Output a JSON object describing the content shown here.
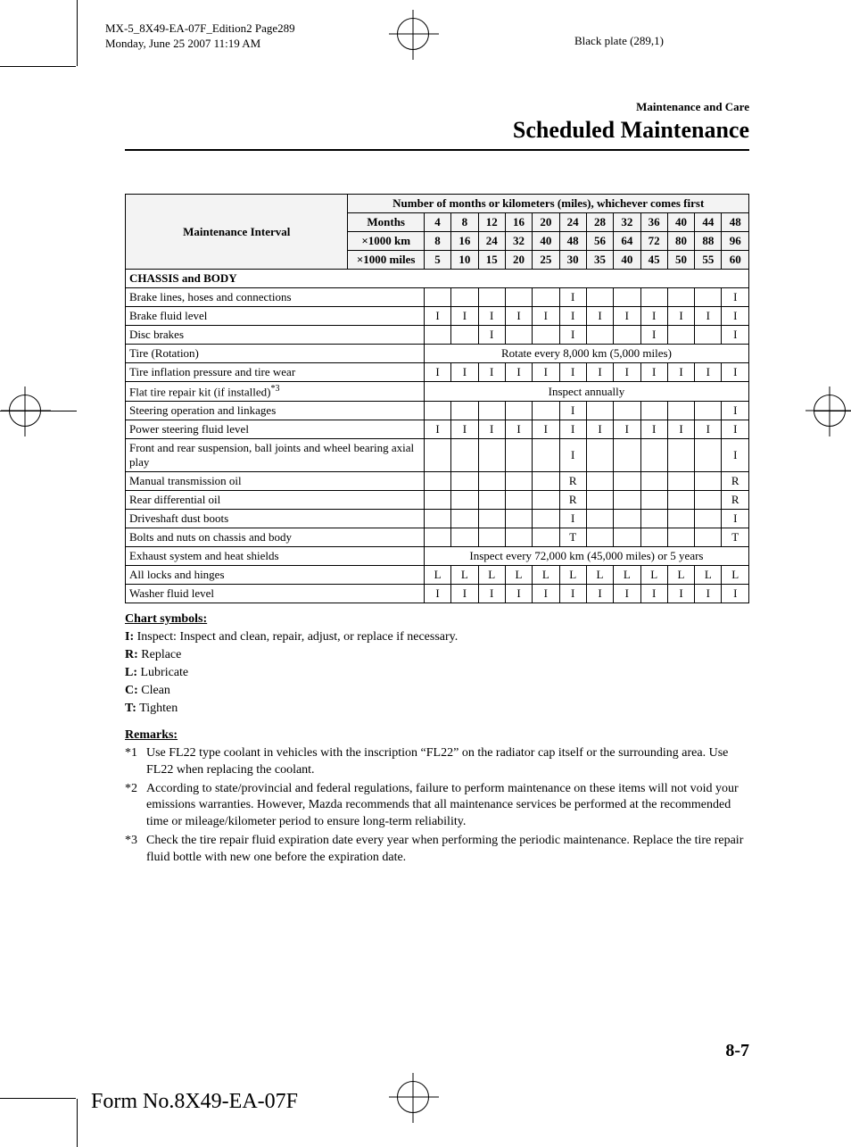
{
  "header": {
    "doc_id": "MX-5_8X49-EA-07F_Edition2 Page289",
    "timestamp": "Monday, June 25 2007 11:19 AM",
    "plate": "Black plate (289,1)"
  },
  "section": {
    "small": "Maintenance and Care",
    "big": "Scheduled Maintenance"
  },
  "table": {
    "header_span": "Number of months or kilometers (miles), whichever comes first",
    "interval_label": "Maintenance Interval",
    "unit_rows": [
      {
        "label": "Months",
        "vals": [
          "4",
          "8",
          "12",
          "16",
          "20",
          "24",
          "28",
          "32",
          "36",
          "40",
          "44",
          "48"
        ]
      },
      {
        "label": "×1000 km",
        "vals": [
          "8",
          "16",
          "24",
          "32",
          "40",
          "48",
          "56",
          "64",
          "72",
          "80",
          "88",
          "96"
        ]
      },
      {
        "label": "×1000 miles",
        "vals": [
          "5",
          "10",
          "15",
          "20",
          "25",
          "30",
          "35",
          "40",
          "45",
          "50",
          "55",
          "60"
        ]
      }
    ],
    "section_title": "CHASSIS and BODY",
    "rows": [
      {
        "label": "Brake lines, hoses and connections",
        "vals": [
          "",
          "",
          "",
          "",
          "",
          "I",
          "",
          "",
          "",
          "",
          "",
          "I"
        ]
      },
      {
        "label": "Brake fluid level",
        "vals": [
          "I",
          "I",
          "I",
          "I",
          "I",
          "I",
          "I",
          "I",
          "I",
          "I",
          "I",
          "I"
        ]
      },
      {
        "label": "Disc brakes",
        "vals": [
          "",
          "",
          "I",
          "",
          "",
          "I",
          "",
          "",
          "I",
          "",
          "",
          "I"
        ]
      },
      {
        "label": "Tire (Rotation)",
        "span": "Rotate every 8,000 km (5,000 miles)"
      },
      {
        "label": "Tire inflation pressure and tire wear",
        "vals": [
          "I",
          "I",
          "I",
          "I",
          "I",
          "I",
          "I",
          "I",
          "I",
          "I",
          "I",
          "I"
        ]
      },
      {
        "label": "Flat tire repair kit (if installed)",
        "sup": "*3",
        "span": "Inspect annually"
      },
      {
        "label": "Steering operation and linkages",
        "vals": [
          "",
          "",
          "",
          "",
          "",
          "I",
          "",
          "",
          "",
          "",
          "",
          "I"
        ]
      },
      {
        "label": "Power steering fluid level",
        "vals": [
          "I",
          "I",
          "I",
          "I",
          "I",
          "I",
          "I",
          "I",
          "I",
          "I",
          "I",
          "I"
        ]
      },
      {
        "label": "Front and rear suspension, ball joints and wheel bearing axial play",
        "tall": true,
        "vals": [
          "",
          "",
          "",
          "",
          "",
          "I",
          "",
          "",
          "",
          "",
          "",
          "I"
        ]
      },
      {
        "label": "Manual transmission oil",
        "vals": [
          "",
          "",
          "",
          "",
          "",
          "R",
          "",
          "",
          "",
          "",
          "",
          "R"
        ]
      },
      {
        "label": "Rear differential oil",
        "vals": [
          "",
          "",
          "",
          "",
          "",
          "R",
          "",
          "",
          "",
          "",
          "",
          "R"
        ]
      },
      {
        "label": "Driveshaft dust boots",
        "vals": [
          "",
          "",
          "",
          "",
          "",
          "I",
          "",
          "",
          "",
          "",
          "",
          "I"
        ]
      },
      {
        "label": "Bolts and nuts on chassis and body",
        "vals": [
          "",
          "",
          "",
          "",
          "",
          "T",
          "",
          "",
          "",
          "",
          "",
          "T"
        ]
      },
      {
        "label": "Exhaust system and heat shields",
        "span": "Inspect every 72,000 km (45,000 miles) or 5 years"
      },
      {
        "label": "All locks and hinges",
        "vals": [
          "L",
          "L",
          "L",
          "L",
          "L",
          "L",
          "L",
          "L",
          "L",
          "L",
          "L",
          "L"
        ]
      },
      {
        "label": "Washer fluid level",
        "vals": [
          "I",
          "I",
          "I",
          "I",
          "I",
          "I",
          "I",
          "I",
          "I",
          "I",
          "I",
          "I"
        ]
      }
    ]
  },
  "symbols": {
    "title": "Chart symbols:",
    "items": [
      {
        "k": "I:",
        "v": " Inspect: Inspect and clean, repair, adjust, or replace if necessary."
      },
      {
        "k": "R:",
        "v": " Replace"
      },
      {
        "k": "L:",
        "v": " Lubricate"
      },
      {
        "k": "C:",
        "v": " Clean"
      },
      {
        "k": "T:",
        "v": " Tighten"
      }
    ]
  },
  "remarks": {
    "title": "Remarks:",
    "items": [
      {
        "n": "*1",
        "t": "Use FL22 type coolant in vehicles with the inscription “FL22” on the radiator cap itself or the surrounding area. Use FL22 when replacing the coolant."
      },
      {
        "n": "*2",
        "t": "According to state/provincial and federal regulations, failure to perform maintenance on these items will not void your emissions warranties. However, Mazda recommends that all maintenance services be performed at the recommended time or mileage/kilometer period to ensure long-term reliability."
      },
      {
        "n": "*3",
        "t": "Check the tire repair fluid expiration date every year when performing the periodic maintenance. Replace the tire repair fluid bottle with new one before the expiration date."
      }
    ]
  },
  "page_num": "8-7",
  "form_no": "Form No.8X49-EA-07F"
}
